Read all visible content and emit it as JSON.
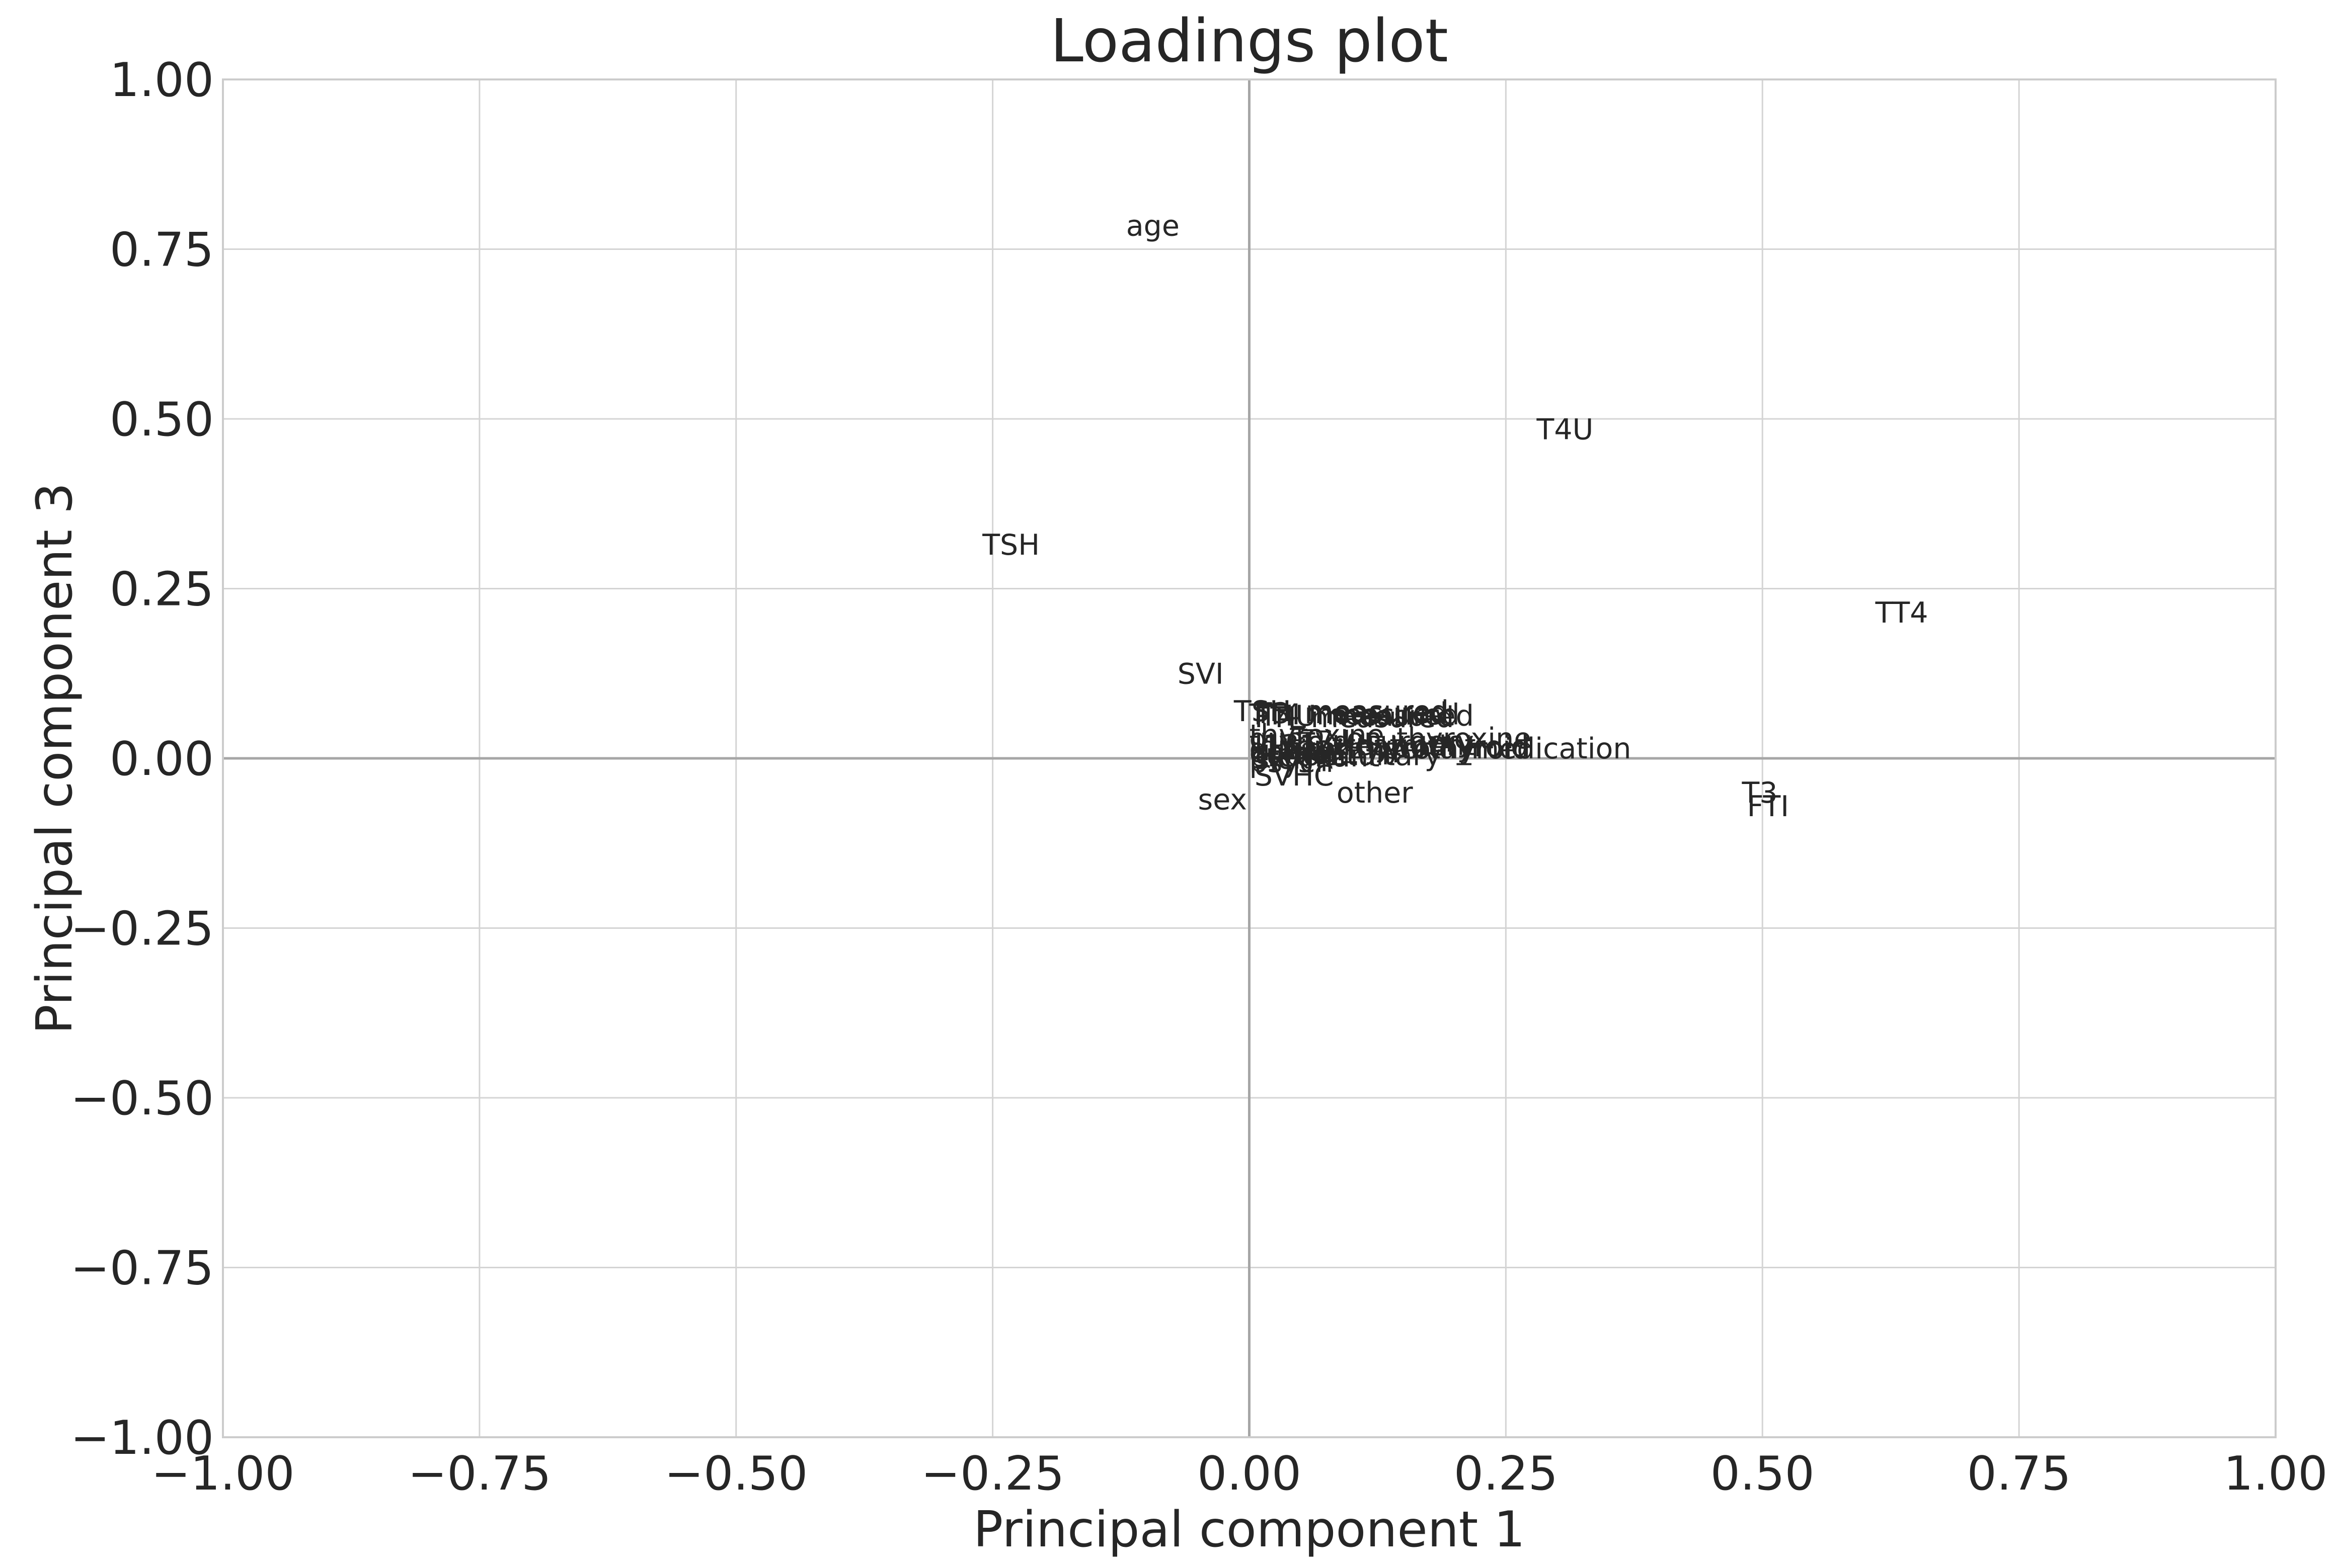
{
  "chart_data": {
    "type": "scatter",
    "title": "Loadings plot",
    "xlabel": "Principal component 1",
    "ylabel": "Principal component 3",
    "xlim": [
      -1.0,
      1.0
    ],
    "ylim": [
      -1.0,
      1.0
    ],
    "grid": true,
    "xticks": [
      "−1.00",
      "−0.75",
      "−0.50",
      "−0.25",
      "0.00",
      "0.25",
      "0.50",
      "0.75",
      "1.00"
    ],
    "yticks": [
      "1.00",
      "0.75",
      "0.50",
      "0.25",
      "0.00",
      "−0.25",
      "−0.50",
      "−0.75",
      "−1.00"
    ],
    "xtick_values": [
      -1.0,
      -0.75,
      -0.5,
      -0.25,
      0.0,
      0.25,
      0.5,
      0.75,
      1.0
    ],
    "ytick_values": [
      1.0,
      0.75,
      0.5,
      0.25,
      0.0,
      -0.25,
      -0.5,
      -0.75,
      -1.0
    ],
    "points": [
      {
        "label": "age",
        "x": -0.12,
        "y": 0.77
      },
      {
        "label": "T4U",
        "x": 0.28,
        "y": 0.47
      },
      {
        "label": "TSH",
        "x": -0.26,
        "y": 0.3
      },
      {
        "label": "TT4",
        "x": 0.61,
        "y": 0.2
      },
      {
        "label": "SVI",
        "x": -0.07,
        "y": 0.11
      },
      {
        "label": "TSH_measured",
        "x": -0.015,
        "y": 0.055
      },
      {
        "label": "T3_measured",
        "x": 0.005,
        "y": 0.052
      },
      {
        "label": "TT4_measured",
        "x": 0.0,
        "y": 0.05
      },
      {
        "label": "T4U_measured",
        "x": 0.01,
        "y": 0.048
      },
      {
        "label": "FTI_measured",
        "x": 0.005,
        "y": 0.046
      },
      {
        "label": "thyroxine",
        "x": 0.0,
        "y": 0.02
      },
      {
        "label": "antithyroid_medication",
        "x": 0.05,
        "y": 0.0
      },
      {
        "label": "query_on_thyroxine",
        "x": 0.0,
        "y": 0.015
      },
      {
        "label": "thyroid_surgery",
        "x": 0.0,
        "y": 0.01
      },
      {
        "label": "I131_treatment",
        "x": 0.005,
        "y": 0.005
      },
      {
        "label": "query_hypothyroid",
        "x": 0.01,
        "y": 0.003
      },
      {
        "label": "query_hyperthyroid",
        "x": 0.0,
        "y": 0.0
      },
      {
        "label": "lithium",
        "x": 0.005,
        "y": -0.003
      },
      {
        "label": "goitre",
        "x": 0.0,
        "y": -0.006
      },
      {
        "label": "tumor",
        "x": 0.005,
        "y": -0.008
      },
      {
        "label": "hypopituitary",
        "x": 0.0,
        "y": -0.01
      },
      {
        "label": "psych",
        "x": 0.0,
        "y": -0.02
      },
      {
        "label": "sick",
        "x": 0.005,
        "y": -0.015
      },
      {
        "label": "pregnant",
        "x": 0.0,
        "y": -0.012
      },
      {
        "label": "SVHC",
        "x": 0.005,
        "y": -0.04
      },
      {
        "label": "other",
        "x": 0.085,
        "y": -0.065
      },
      {
        "label": "sex",
        "x": -0.05,
        "y": -0.075
      },
      {
        "label": "T3",
        "x": 0.48,
        "y": -0.065
      },
      {
        "label": "FTI",
        "x": 0.485,
        "y": -0.085
      }
    ]
  }
}
